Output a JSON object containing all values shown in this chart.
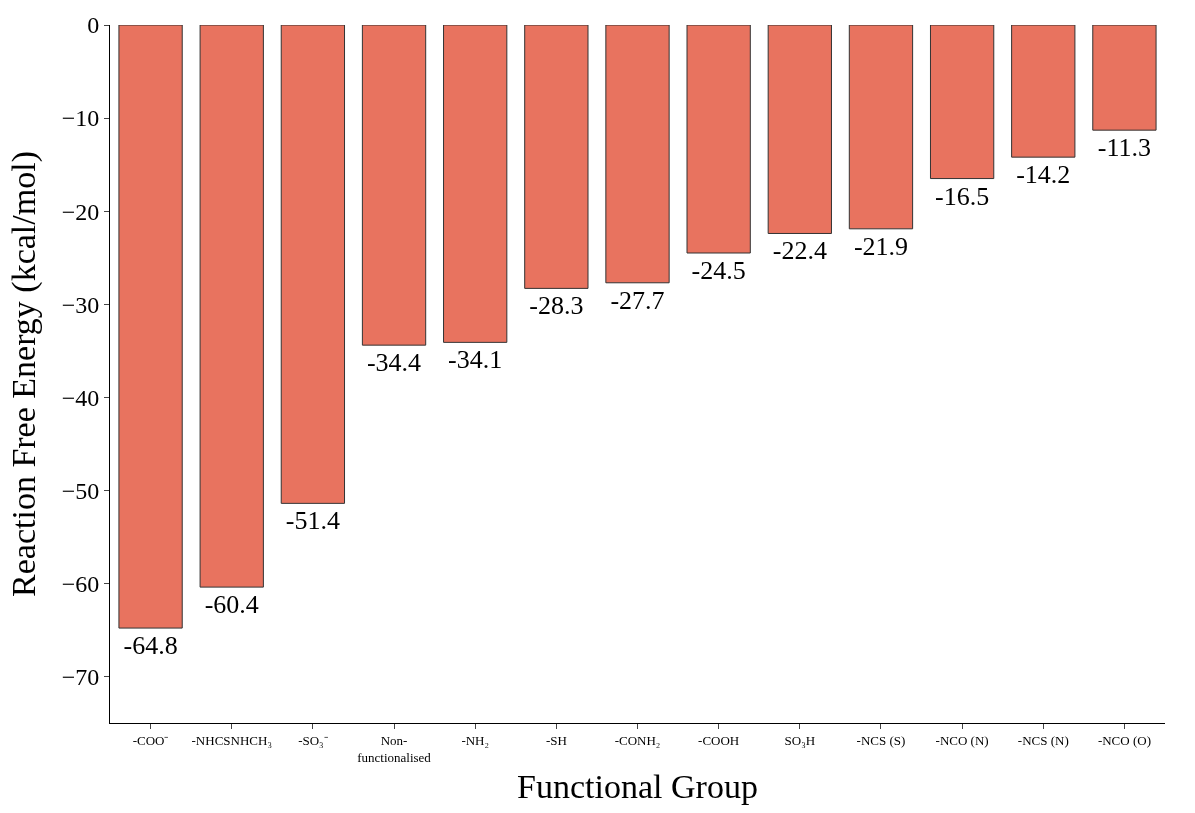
{
  "chart_data": {
    "type": "bar",
    "xlabel": "Functional Group",
    "ylabel": "Reaction Free Energy (kcal/mol)",
    "categories": [
      "-COO⁻",
      "-NHCSNHCH₃",
      "-SO₃⁻",
      "Non-\nfunctionalised",
      "-NH₂",
      "-SH",
      "-CONH₂",
      "-COOH",
      "SO₃H",
      "-NCS (S)",
      "-NCO (N)",
      "-NCS (N)",
      "-NCO (O)"
    ],
    "values": [
      -64.8,
      -60.4,
      -51.4,
      -34.4,
      -34.1,
      -28.3,
      -27.7,
      -24.5,
      -22.4,
      -21.9,
      -16.5,
      -14.2,
      -11.3
    ],
    "color": "#e8735f",
    "ylim": [
      -75,
      0
    ],
    "yticks": [
      {
        "value": 0,
        "label": "0"
      },
      {
        "value": -10,
        "label": "−10"
      },
      {
        "value": -20,
        "label": "−20"
      },
      {
        "value": -30,
        "label": "−30"
      },
      {
        "value": -40,
        "label": "−40"
      },
      {
        "value": -50,
        "label": "−50"
      },
      {
        "value": -60,
        "label": "−60"
      },
      {
        "value": -70,
        "label": "−70"
      }
    ],
    "data_labels": true
  }
}
